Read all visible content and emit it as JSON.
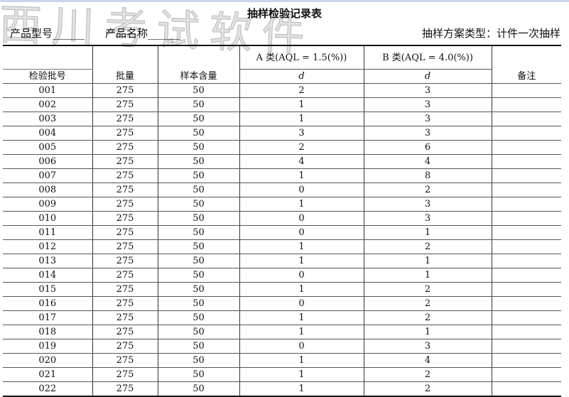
{
  "watermark": "西川考试软件",
  "title": "抽样检验记录表",
  "product_model_label": "产品型号______",
  "product_name_label": "产品名称______",
  "scheme_type": "抽样方案类型：计件一次抽样",
  "header": {
    "batch_no": "检验批号",
    "lot_size": "批量",
    "sample_size": "样本含量",
    "class_a": "A 类(AQL = 1.5(%))",
    "class_b": "B 类(AQL = 4.0(%))",
    "d_a": "d",
    "d_b": "d",
    "remarks": "备注"
  },
  "rows": [
    {
      "no": "001",
      "lot": "275",
      "n": "50",
      "a": "2",
      "b": "3"
    },
    {
      "no": "002",
      "lot": "275",
      "n": "50",
      "a": "1",
      "b": "3"
    },
    {
      "no": "003",
      "lot": "275",
      "n": "50",
      "a": "1",
      "b": "3"
    },
    {
      "no": "004",
      "lot": "275",
      "n": "50",
      "a": "3",
      "b": "3"
    },
    {
      "no": "005",
      "lot": "275",
      "n": "50",
      "a": "2",
      "b": "6"
    },
    {
      "no": "006",
      "lot": "275",
      "n": "50",
      "a": "4",
      "b": "4"
    },
    {
      "no": "007",
      "lot": "275",
      "n": "50",
      "a": "1",
      "b": "8"
    },
    {
      "no": "008",
      "lot": "275",
      "n": "50",
      "a": "0",
      "b": "2"
    },
    {
      "no": "009",
      "lot": "275",
      "n": "50",
      "a": "1",
      "b": "3"
    },
    {
      "no": "010",
      "lot": "275",
      "n": "50",
      "a": "0",
      "b": "3"
    },
    {
      "no": "011",
      "lot": "275",
      "n": "50",
      "a": "0",
      "b": "1"
    },
    {
      "no": "012",
      "lot": "275",
      "n": "50",
      "a": "1",
      "b": "2"
    },
    {
      "no": "013",
      "lot": "275",
      "n": "50",
      "a": "1",
      "b": "1"
    },
    {
      "no": "014",
      "lot": "275",
      "n": "50",
      "a": "0",
      "b": "1"
    },
    {
      "no": "015",
      "lot": "275",
      "n": "50",
      "a": "1",
      "b": "2"
    },
    {
      "no": "016",
      "lot": "275",
      "n": "50",
      "a": "0",
      "b": "2"
    },
    {
      "no": "017",
      "lot": "275",
      "n": "50",
      "a": "1",
      "b": "2"
    },
    {
      "no": "018",
      "lot": "275",
      "n": "50",
      "a": "1",
      "b": "1"
    },
    {
      "no": "019",
      "lot": "275",
      "n": "50",
      "a": "0",
      "b": "3"
    },
    {
      "no": "020",
      "lot": "275",
      "n": "50",
      "a": "1",
      "b": "4"
    },
    {
      "no": "021",
      "lot": "275",
      "n": "50",
      "a": "1",
      "b": "2"
    },
    {
      "no": "022",
      "lot": "275",
      "n": "50",
      "a": "1",
      "b": "2"
    }
  ]
}
